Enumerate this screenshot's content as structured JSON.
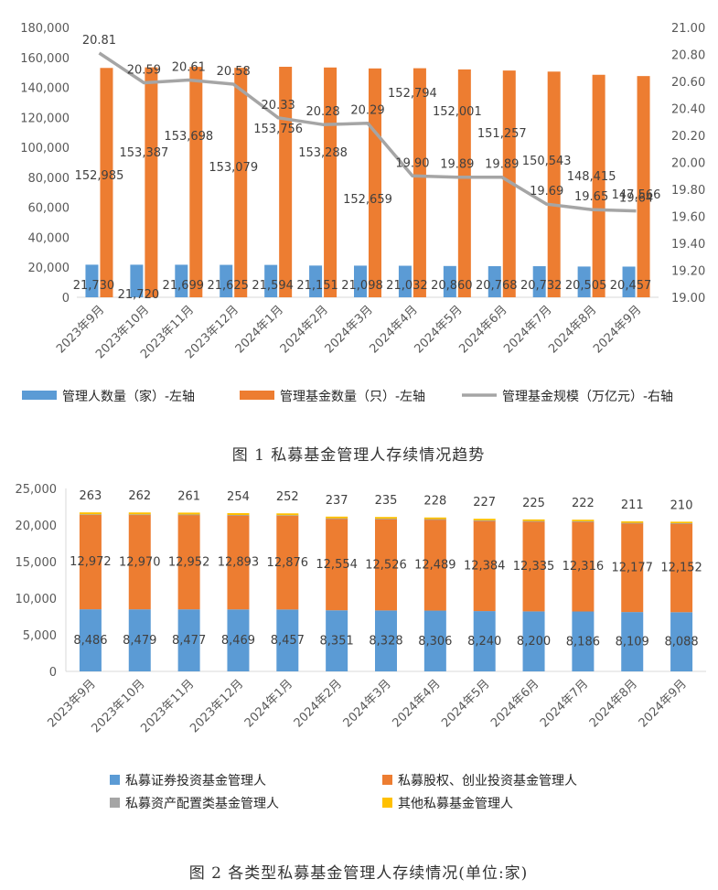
{
  "chart_data": [
    {
      "type": "bar",
      "title": "图 1  私募基金管理人存续情况趋势",
      "categories": [
        "2023年9月",
        "2023年10月",
        "2023年11月",
        "2023年12月",
        "2024年1月",
        "2024年2月",
        "2024年3月",
        "2024年4月",
        "2024年5月",
        "2024年6月",
        "2024年7月",
        "2024年8月",
        "2024年9月"
      ],
      "series": [
        {
          "name": "管理人数量（家）-左轴",
          "type": "bar",
          "axis": "left",
          "color": "#5B9BD5",
          "values": [
            21730,
            21720,
            21699,
            21625,
            21594,
            21151,
            21098,
            21032,
            20860,
            20768,
            20732,
            20505,
            20457
          ],
          "labels": [
            "21,730",
            "21,720",
            "21,699",
            "21,625",
            "21,594",
            "21,151",
            "21,098",
            "21,032",
            "20,860",
            "20,768",
            "20,732",
            "20,505",
            "20,457"
          ]
        },
        {
          "name": "管理基金数量（只）-左轴",
          "type": "bar",
          "axis": "left",
          "color": "#ED7D31",
          "values": [
            152985,
            153387,
            153698,
            153079,
            153756,
            153288,
            152659,
            152794,
            152001,
            151257,
            150543,
            148415,
            147566
          ],
          "labels": [
            "152,985",
            "153,387",
            "153,698",
            "153,079",
            "153,756",
            "153,288",
            "152,659",
            "152,794",
            "152,001",
            "151,257",
            "150,543",
            "148,415",
            "147,566"
          ]
        },
        {
          "name": "管理基金规模（万亿元）-右轴",
          "type": "line",
          "axis": "right",
          "color": "#A5A5A5",
          "values": [
            20.81,
            20.59,
            20.61,
            20.58,
            20.33,
            20.28,
            20.29,
            19.9,
            19.89,
            19.89,
            19.69,
            19.65,
            19.64
          ],
          "labels": [
            "20.81",
            "20.59",
            "20.61",
            "20.58",
            "20.33",
            "20.28",
            "20.29",
            "19.90",
            "19.89",
            "19.89",
            "19.69",
            "19.65",
            "19.64"
          ]
        }
      ],
      "ylim": [
        0,
        180000
      ],
      "yticks": [
        "0",
        "20,000",
        "40,000",
        "60,000",
        "80,000",
        "100,000",
        "120,000",
        "140,000",
        "160,000",
        "180,000"
      ],
      "y2lim": [
        19.0,
        21.0
      ],
      "y2ticks": [
        "19.00",
        "19.20",
        "19.40",
        "19.60",
        "19.80",
        "20.00",
        "20.20",
        "20.40",
        "20.60",
        "20.80",
        "21.00"
      ],
      "legend_position": "bottom"
    },
    {
      "type": "bar",
      "stacked": true,
      "title": "图 2  各类型私募基金管理人存续情况(单位:家)",
      "categories": [
        "2023年9月",
        "2023年10月",
        "2023年11月",
        "2023年12月",
        "2024年1月",
        "2024年2月",
        "2024年3月",
        "2024年4月",
        "2024年5月",
        "2024年6月",
        "2024年7月",
        "2024年8月",
        "2024年9月"
      ],
      "series": [
        {
          "name": "私募证券投资基金管理人",
          "color": "#5B9BD5",
          "values": [
            8486,
            8479,
            8477,
            8469,
            8457,
            8351,
            8328,
            8306,
            8240,
            8200,
            8186,
            8109,
            8088
          ],
          "labels": [
            "8,486",
            "8,479",
            "8,477",
            "8,469",
            "8,457",
            "8,351",
            "8,328",
            "8,306",
            "8,240",
            "8,200",
            "8,186",
            "8,109",
            "8,088"
          ]
        },
        {
          "name": "私募股权、创业投资基金管理人",
          "color": "#ED7D31",
          "values": [
            12972,
            12970,
            12952,
            12893,
            12876,
            12554,
            12526,
            12489,
            12384,
            12335,
            12316,
            12177,
            12152
          ],
          "labels": [
            "12,972",
            "12,970",
            "12,952",
            "12,893",
            "12,876",
            "12,554",
            "12,526",
            "12,489",
            "12,384",
            "12,335",
            "12,316",
            "12,177",
            "12,152"
          ]
        },
        {
          "name": "私募资产配置类基金管理人",
          "color": "#A5A5A5",
          "values": [
            9,
            9,
            9,
            9,
            9,
            9,
            9,
            9,
            9,
            8,
            8,
            8,
            7
          ],
          "labels": []
        },
        {
          "name": "其他私募基金管理人",
          "color": "#FFC000",
          "values": [
            263,
            262,
            261,
            254,
            252,
            237,
            235,
            228,
            227,
            225,
            222,
            211,
            210
          ],
          "labels": [
            "263",
            "262",
            "261",
            "254",
            "252",
            "237",
            "235",
            "228",
            "227",
            "225",
            "222",
            "211",
            "210"
          ]
        }
      ],
      "ylim": [
        0,
        25000
      ],
      "yticks": [
        "0",
        "5,000",
        "10,000",
        "15,000",
        "20,000",
        "25,000"
      ],
      "legend_position": "bottom"
    }
  ]
}
